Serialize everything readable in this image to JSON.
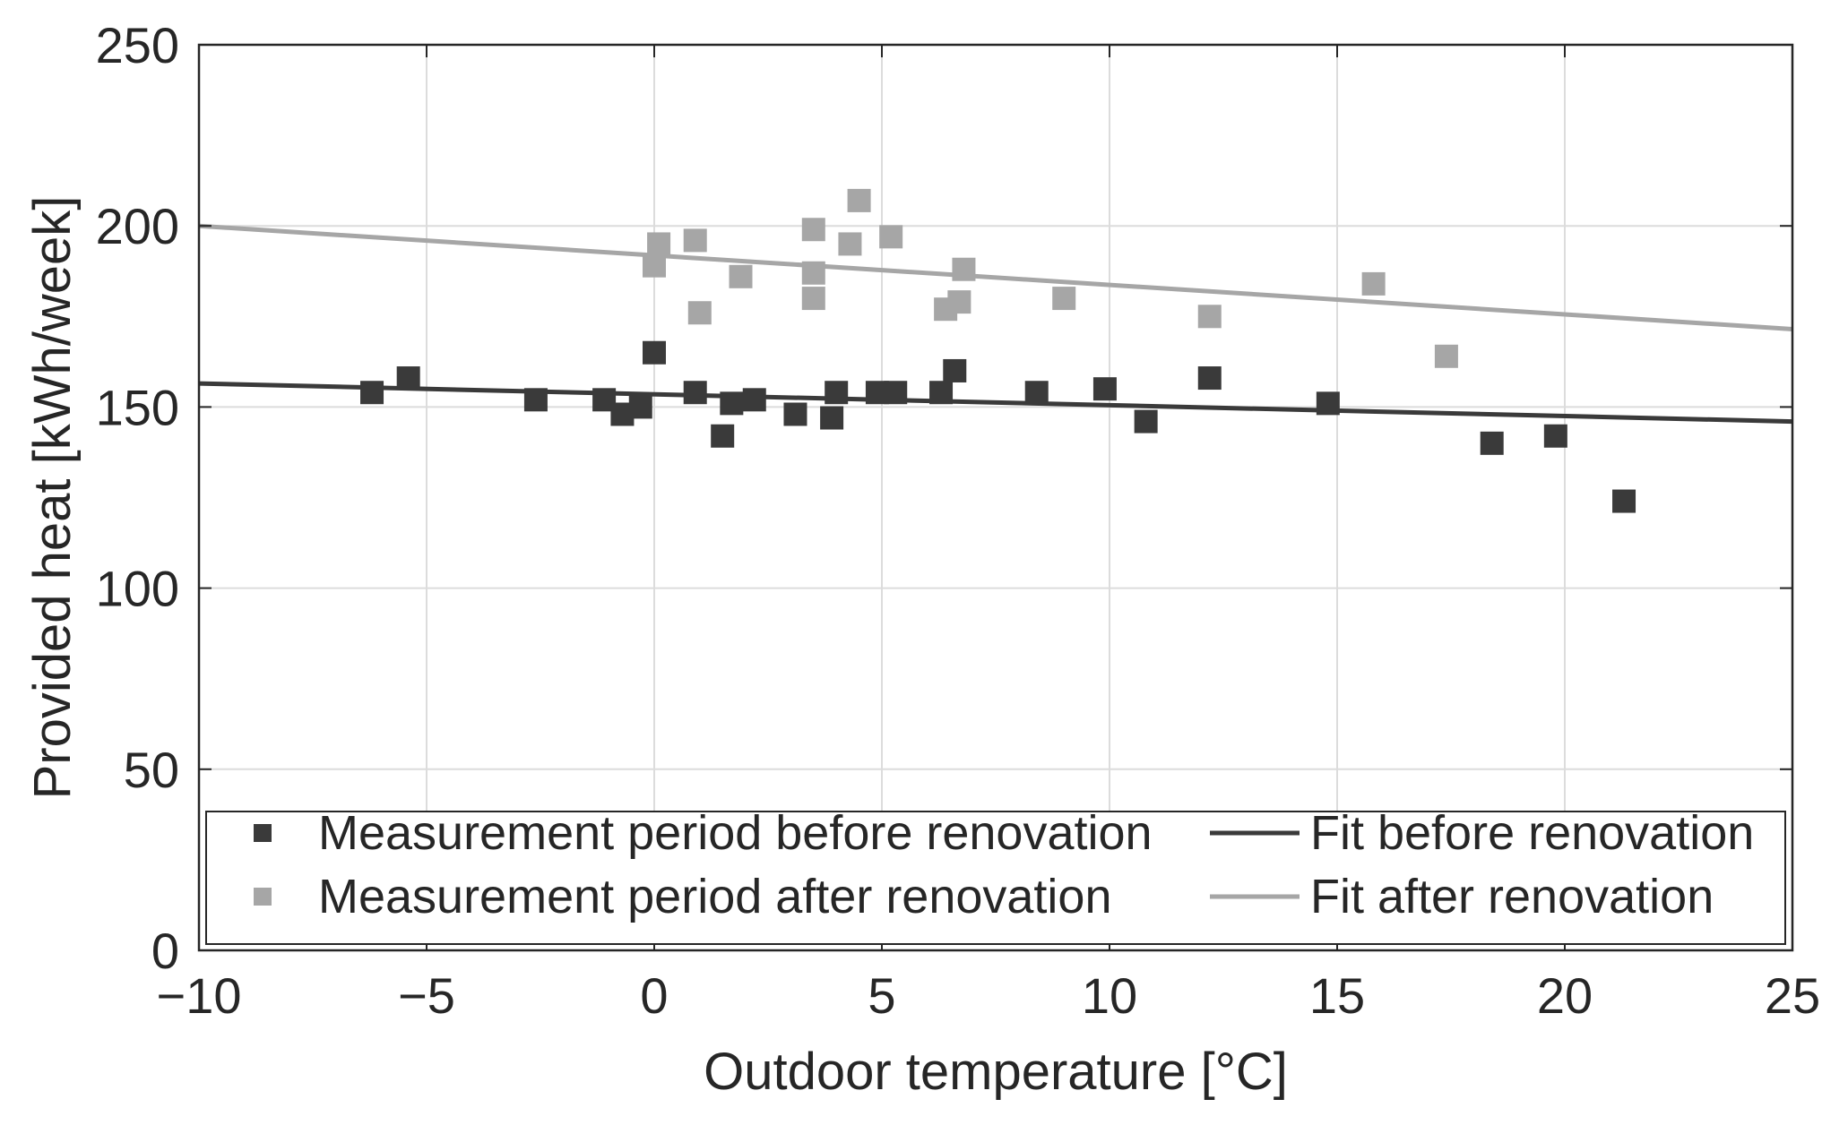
{
  "chart_data": {
    "type": "scatter",
    "title": "",
    "xlabel": "Outdoor temperature [°C]",
    "ylabel": "Provided heat [kWh/week]",
    "xlim": [
      -10,
      25
    ],
    "ylim": [
      0,
      250
    ],
    "xticks": [
      -10,
      -5,
      0,
      5,
      10,
      15,
      20,
      25
    ],
    "yticks": [
      0,
      50,
      100,
      150,
      200,
      250
    ],
    "xtick_labels": [
      "−10",
      "−5",
      "0",
      "5",
      "10",
      "15",
      "20",
      "25"
    ],
    "ytick_labels": [
      "0",
      "50",
      "100",
      "150",
      "200",
      "250"
    ],
    "grid": true,
    "legend_position": "bottom",
    "colors": {
      "before": "#3a3a3a",
      "after": "#a6a6a6",
      "grid": "#dcdcdc",
      "axis": "#262626"
    },
    "series": [
      {
        "name": "Measurement period before renovation",
        "kind": "scatter",
        "color": "#3a3a3a",
        "points": [
          [
            -6.2,
            154
          ],
          [
            -5.4,
            158
          ],
          [
            -2.6,
            152
          ],
          [
            -1.1,
            152
          ],
          [
            -0.7,
            148
          ],
          [
            -0.3,
            150
          ],
          [
            0.0,
            165
          ],
          [
            0.9,
            154
          ],
          [
            1.5,
            142
          ],
          [
            1.7,
            151
          ],
          [
            2.2,
            152
          ],
          [
            3.1,
            148
          ],
          [
            3.9,
            147
          ],
          [
            4.0,
            154
          ],
          [
            4.9,
            154
          ],
          [
            5.3,
            154
          ],
          [
            6.3,
            154
          ],
          [
            6.6,
            160
          ],
          [
            8.4,
            154
          ],
          [
            9.9,
            155
          ],
          [
            10.8,
            146
          ],
          [
            12.2,
            158
          ],
          [
            14.8,
            151
          ],
          [
            18.4,
            140
          ],
          [
            19.8,
            142
          ],
          [
            21.3,
            124
          ]
        ]
      },
      {
        "name": "Measurement period after renovation",
        "kind": "scatter",
        "color": "#a6a6a6",
        "points": [
          [
            0.0,
            189
          ],
          [
            0.1,
            195
          ],
          [
            0.9,
            196
          ],
          [
            1.0,
            176
          ],
          [
            1.9,
            186
          ],
          [
            3.5,
            199
          ],
          [
            3.5,
            187
          ],
          [
            3.5,
            180
          ],
          [
            4.3,
            195
          ],
          [
            4.5,
            207
          ],
          [
            5.2,
            197
          ],
          [
            6.4,
            177
          ],
          [
            6.7,
            179
          ],
          [
            6.8,
            188
          ],
          [
            9.0,
            180
          ],
          [
            12.2,
            175
          ],
          [
            15.8,
            184
          ],
          [
            17.4,
            164
          ]
        ]
      },
      {
        "name": "Fit before renovation",
        "kind": "line",
        "color": "#3a3a3a",
        "points": [
          [
            -10,
            156.5
          ],
          [
            25,
            146
          ]
        ]
      },
      {
        "name": "Fit after renovation",
        "kind": "line",
        "color": "#a6a6a6",
        "points": [
          [
            -10,
            200
          ],
          [
            25,
            171.5
          ]
        ]
      }
    ]
  }
}
